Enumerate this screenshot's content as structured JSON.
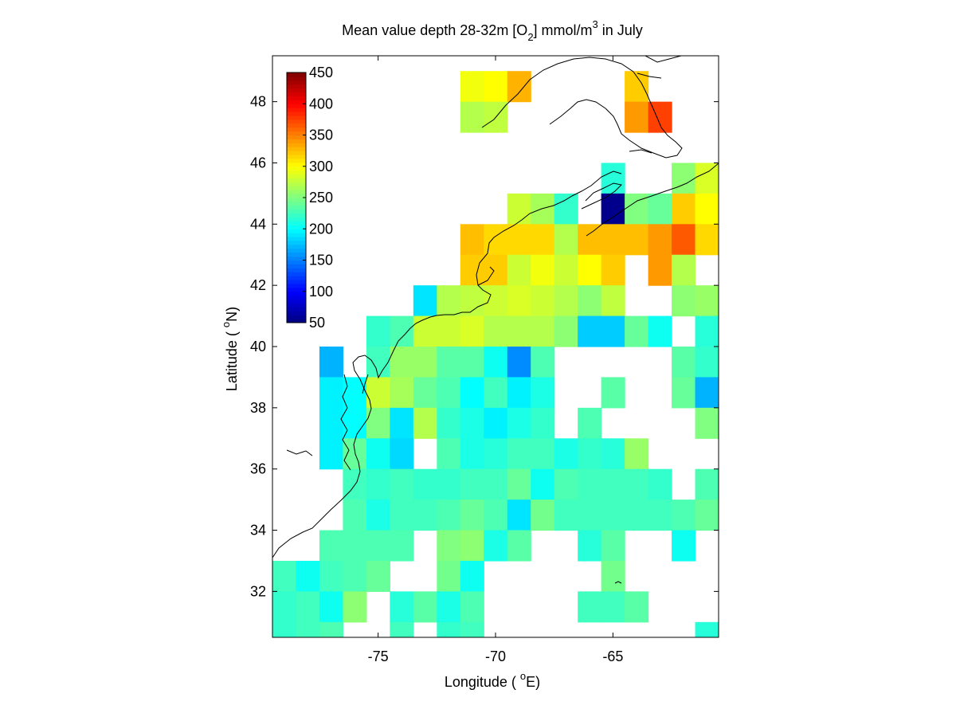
{
  "figure": {
    "title_main": "Mean value depth 28-32m [O",
    "title_sub": "2",
    "title_rest": "] mmol/m",
    "title_sup": "3",
    "title_end": " in July",
    "xlabel_pre": "Longitude ( ",
    "xlabel_sup": "o",
    "xlabel_post": "E)",
    "ylabel_pre": "Latitude ( ",
    "ylabel_sup": "o",
    "ylabel_post": "N)"
  },
  "chart_data": {
    "type": "heatmap",
    "title": "Mean value depth 28-32m [O2] mmol/m3 in July",
    "xlabel": "Longitude ( oE)",
    "ylabel": "Latitude ( oN)",
    "xlim": [
      -79.5,
      -60.5
    ],
    "ylim": [
      30.5,
      49.5
    ],
    "xticks": [
      -75,
      -70,
      -65
    ],
    "xtick_labels": [
      "-75",
      "-70",
      "-65"
    ],
    "yticks": [
      32,
      34,
      36,
      38,
      40,
      42,
      44,
      46,
      48
    ],
    "ytick_labels": [
      "32",
      "34",
      "36",
      "38",
      "40",
      "42",
      "44",
      "46",
      "48"
    ],
    "colorbar": {
      "colormap": "jet",
      "min": 50,
      "max": 450,
      "ticks": [
        50,
        100,
        150,
        200,
        250,
        300,
        350,
        400,
        450
      ],
      "tick_labels": [
        "50",
        "100",
        "150",
        "200",
        "250",
        "300",
        "350",
        "400",
        "450"
      ],
      "location": "inside-top-left"
    },
    "cell_size_deg": 1,
    "cells": [
      [
        -71,
        48.5,
        295
      ],
      [
        -70,
        48.5,
        300
      ],
      [
        -69,
        48.5,
        330
      ],
      [
        -64,
        48.5,
        320
      ],
      [
        -71,
        47.5,
        270
      ],
      [
        -70,
        47.5,
        275
      ],
      [
        -64,
        47.5,
        340
      ],
      [
        -63,
        47.5,
        375
      ],
      [
        -65,
        45.5,
        215
      ],
      [
        -62,
        45.5,
        255
      ],
      [
        -61,
        45.5,
        285
      ],
      [
        -69,
        44.5,
        280
      ],
      [
        -68,
        44.5,
        265
      ],
      [
        -67,
        44.5,
        220
      ],
      [
        -65,
        44.5,
        55
      ],
      [
        -64,
        44.5,
        250
      ],
      [
        -63,
        44.5,
        240
      ],
      [
        -62,
        44.5,
        320
      ],
      [
        -61,
        44.5,
        300
      ],
      [
        -71,
        43.5,
        325
      ],
      [
        -70,
        43.5,
        315
      ],
      [
        -69,
        43.5,
        315
      ],
      [
        -68,
        43.5,
        315
      ],
      [
        -67,
        43.5,
        270
      ],
      [
        -66,
        43.5,
        325
      ],
      [
        -65,
        43.5,
        325
      ],
      [
        -64,
        43.5,
        325
      ],
      [
        -63,
        43.5,
        340
      ],
      [
        -62,
        43.5,
        365
      ],
      [
        -61,
        43.5,
        315
      ],
      [
        -71,
        42.5,
        320
      ],
      [
        -70,
        42.5,
        320
      ],
      [
        -69,
        42.5,
        280
      ],
      [
        -68,
        42.5,
        295
      ],
      [
        -67,
        42.5,
        280
      ],
      [
        -66,
        42.5,
        300
      ],
      [
        -65,
        42.5,
        320
      ],
      [
        -63,
        42.5,
        340
      ],
      [
        -62,
        42.5,
        270
      ],
      [
        -73,
        41.5,
        190
      ],
      [
        -72,
        41.5,
        270
      ],
      [
        -71,
        41.5,
        275
      ],
      [
        -70,
        41.5,
        280
      ],
      [
        -69,
        41.5,
        285
      ],
      [
        -68,
        41.5,
        280
      ],
      [
        -67,
        41.5,
        270
      ],
      [
        -66,
        41.5,
        255
      ],
      [
        -65,
        41.5,
        275
      ],
      [
        -62,
        41.5,
        255
      ],
      [
        -61,
        41.5,
        260
      ],
      [
        -75,
        40.5,
        220
      ],
      [
        -74,
        40.5,
        230
      ],
      [
        -73,
        40.5,
        280
      ],
      [
        -72,
        40.5,
        280
      ],
      [
        -71,
        40.5,
        285
      ],
      [
        -70,
        40.5,
        270
      ],
      [
        -69,
        40.5,
        270
      ],
      [
        -68,
        40.5,
        270
      ],
      [
        -67,
        40.5,
        255
      ],
      [
        -66,
        40.5,
        180
      ],
      [
        -65,
        40.5,
        180
      ],
      [
        -64,
        40.5,
        240
      ],
      [
        -63,
        40.5,
        205
      ],
      [
        -61,
        40.5,
        215
      ],
      [
        -77,
        39.5,
        170
      ],
      [
        -75,
        39.5,
        225
      ],
      [
        -74,
        39.5,
        260
      ],
      [
        -73,
        39.5,
        260
      ],
      [
        -72,
        39.5,
        235
      ],
      [
        -71,
        39.5,
        235
      ],
      [
        -70,
        39.5,
        205
      ],
      [
        -69,
        39.5,
        155
      ],
      [
        -68,
        39.5,
        230
      ],
      [
        -62,
        39.5,
        235
      ],
      [
        -61,
        39.5,
        220
      ],
      [
        -77,
        38.5,
        195
      ],
      [
        -76,
        38.5,
        200
      ],
      [
        -75,
        38.5,
        280
      ],
      [
        -74,
        38.5,
        265
      ],
      [
        -73,
        38.5,
        240
      ],
      [
        -72,
        38.5,
        230
      ],
      [
        -71,
        38.5,
        200
      ],
      [
        -70,
        38.5,
        225
      ],
      [
        -69,
        38.5,
        195
      ],
      [
        -68,
        38.5,
        210
      ],
      [
        -65,
        38.5,
        235
      ],
      [
        -62,
        38.5,
        240
      ],
      [
        -61,
        38.5,
        170
      ],
      [
        -77,
        37.5,
        195
      ],
      [
        -76,
        37.5,
        200
      ],
      [
        -75,
        37.5,
        250
      ],
      [
        -74,
        37.5,
        190
      ],
      [
        -73,
        37.5,
        270
      ],
      [
        -72,
        37.5,
        220
      ],
      [
        -71,
        37.5,
        210
      ],
      [
        -70,
        37.5,
        195
      ],
      [
        -69,
        37.5,
        210
      ],
      [
        -68,
        37.5,
        220
      ],
      [
        -66,
        37.5,
        230
      ],
      [
        -61,
        37.5,
        250
      ],
      [
        -77,
        36.5,
        195
      ],
      [
        -76,
        36.5,
        240
      ],
      [
        -75,
        36.5,
        205
      ],
      [
        -74,
        36.5,
        185
      ],
      [
        -72,
        36.5,
        230
      ],
      [
        -71,
        36.5,
        210
      ],
      [
        -70,
        36.5,
        215
      ],
      [
        -69,
        36.5,
        225
      ],
      [
        -68,
        36.5,
        225
      ],
      [
        -67,
        36.5,
        210
      ],
      [
        -66,
        36.5,
        220
      ],
      [
        -65,
        36.5,
        215
      ],
      [
        -64,
        36.5,
        260
      ],
      [
        -76,
        35.5,
        225
      ],
      [
        -75,
        35.5,
        220
      ],
      [
        -74,
        35.5,
        225
      ],
      [
        -73,
        35.5,
        220
      ],
      [
        -72,
        35.5,
        220
      ],
      [
        -71,
        35.5,
        225
      ],
      [
        -70,
        35.5,
        225
      ],
      [
        -69,
        35.5,
        240
      ],
      [
        -68,
        35.5,
        205
      ],
      [
        -67,
        35.5,
        230
      ],
      [
        -66,
        35.5,
        225
      ],
      [
        -65,
        35.5,
        225
      ],
      [
        -64,
        35.5,
        225
      ],
      [
        -63,
        35.5,
        220
      ],
      [
        -61,
        35.5,
        230
      ],
      [
        -76,
        34.5,
        230
      ],
      [
        -75,
        34.5,
        210
      ],
      [
        -74,
        34.5,
        225
      ],
      [
        -73,
        34.5,
        225
      ],
      [
        -72,
        34.5,
        230
      ],
      [
        -71,
        34.5,
        240
      ],
      [
        -70,
        34.5,
        230
      ],
      [
        -69,
        34.5,
        190
      ],
      [
        -68,
        34.5,
        245
      ],
      [
        -67,
        34.5,
        225
      ],
      [
        -66,
        34.5,
        225
      ],
      [
        -65,
        34.5,
        225
      ],
      [
        -64,
        34.5,
        225
      ],
      [
        -63,
        34.5,
        225
      ],
      [
        -62,
        34.5,
        230
      ],
      [
        -61,
        34.5,
        240
      ],
      [
        -77,
        33.5,
        230
      ],
      [
        -76,
        33.5,
        230
      ],
      [
        -75,
        33.5,
        230
      ],
      [
        -74,
        33.5,
        230
      ],
      [
        -72,
        33.5,
        250
      ],
      [
        -71,
        33.5,
        255
      ],
      [
        -70,
        33.5,
        210
      ],
      [
        -69,
        33.5,
        235
      ],
      [
        -66,
        33.5,
        215
      ],
      [
        -65,
        33.5,
        235
      ],
      [
        -62,
        33.5,
        205
      ],
      [
        -79,
        32.5,
        225
      ],
      [
        -78,
        32.5,
        205
      ],
      [
        -77,
        32.5,
        225
      ],
      [
        -76,
        32.5,
        230
      ],
      [
        -75,
        32.5,
        240
      ],
      [
        -72,
        32.5,
        245
      ],
      [
        -71,
        32.5,
        205
      ],
      [
        -65,
        32.5,
        245
      ],
      [
        -79,
        31.5,
        220
      ],
      [
        -78,
        31.5,
        225
      ],
      [
        -77,
        31.5,
        205
      ],
      [
        -76,
        31.5,
        255
      ],
      [
        -74,
        31.5,
        215
      ],
      [
        -73,
        31.5,
        235
      ],
      [
        -72,
        31.5,
        210
      ],
      [
        -71,
        31.5,
        230
      ],
      [
        -66,
        31.5,
        225
      ],
      [
        -65,
        31.5,
        225
      ],
      [
        -64,
        31.5,
        235
      ],
      [
        -79,
        30.5,
        220
      ],
      [
        -78,
        30.5,
        225
      ],
      [
        -77,
        30.5,
        230
      ],
      [
        -74,
        30.5,
        225
      ],
      [
        -72,
        30.5,
        220
      ],
      [
        -71,
        30.5,
        225
      ],
      [
        -61,
        30.5,
        215
      ]
    ],
    "grid": false,
    "coastline": true
  }
}
